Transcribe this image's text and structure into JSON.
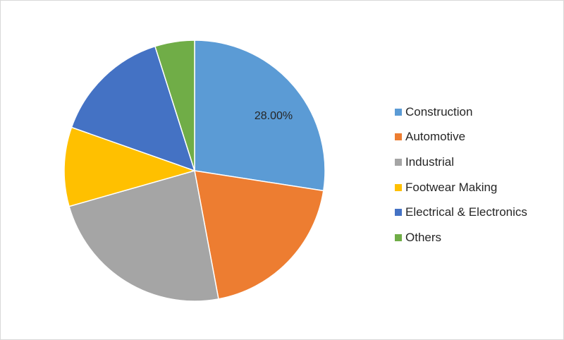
{
  "chart_data": {
    "type": "pie",
    "categories": [
      "Construction",
      "Automotive",
      "Industrial",
      "Footwear Making",
      "Electrical & Electronics",
      "Others"
    ],
    "values": [
      28.0,
      20.0,
      24.0,
      10.0,
      15.0,
      5.0
    ],
    "colors": [
      "#5B9BD5",
      "#ED7D31",
      "#A5A5A5",
      "#FFC000",
      "#4472C4",
      "#70AD47"
    ],
    "data_labels": [
      "28.00%",
      "",
      "",
      "",
      "",
      ""
    ],
    "legend_position": "right",
    "start_angle": "12 o'clock",
    "direction": "clockwise"
  }
}
